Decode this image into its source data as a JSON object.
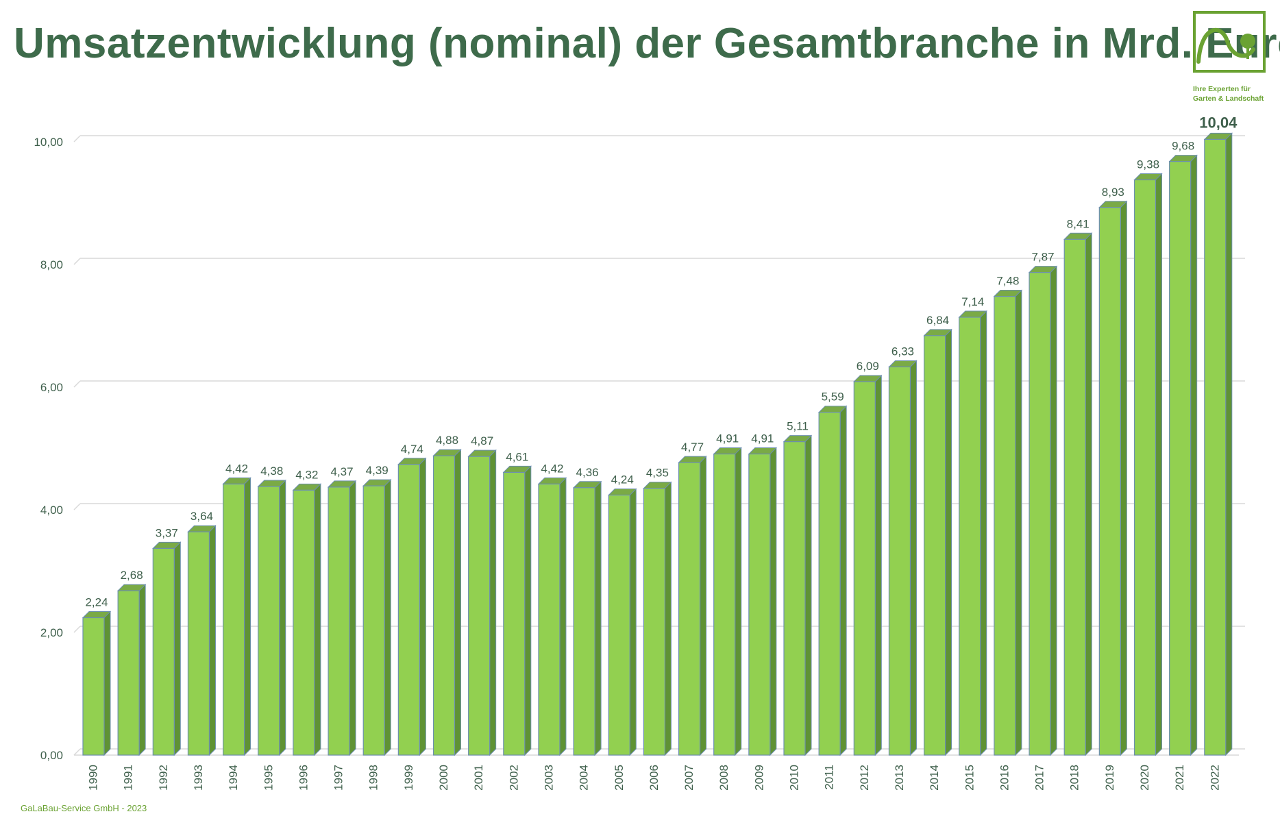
{
  "title": "Umsatzentwicklung (nominal) der Gesamtbranche in Mrd. Euro",
  "logo": {
    "line1": "Ihre Experten für",
    "line2": "Garten & Landschaft"
  },
  "footer": "GaLaBau-Service GmbH  -  2023",
  "colors": {
    "title": "#3e6b4b",
    "bar_front": "#92d050",
    "bar_side": "#5f9234",
    "bar_top": "#7aaa46",
    "bar_edge": "#6d8fb0",
    "label": "#3e5f4b",
    "logo_green": "#6aa232"
  },
  "chart_data": {
    "type": "bar",
    "categories": [
      "1990",
      "1991",
      "1992",
      "1993",
      "1994",
      "1995",
      "1996",
      "1997",
      "1998",
      "1999",
      "2000",
      "2001",
      "2002",
      "2003",
      "2004",
      "2005",
      "2006",
      "2007",
      "2008",
      "2009",
      "2010",
      "2011",
      "2012",
      "2013",
      "2014",
      "2015",
      "2016",
      "2017",
      "2018",
      "2019",
      "2020",
      "2021",
      "2022"
    ],
    "values": [
      2.24,
      2.68,
      3.37,
      3.64,
      4.42,
      4.38,
      4.32,
      4.37,
      4.39,
      4.74,
      4.88,
      4.87,
      4.61,
      4.42,
      4.36,
      4.24,
      4.35,
      4.77,
      4.91,
      4.91,
      5.11,
      5.59,
      6.09,
      6.33,
      6.84,
      7.14,
      7.48,
      7.87,
      8.41,
      8.93,
      9.38,
      9.68,
      10.04
    ],
    "value_labels": [
      "2,24",
      "2,68",
      "3,37",
      "3,64",
      "4,42",
      "4,38",
      "4,32",
      "4,37",
      "4,39",
      "4,74",
      "4,88",
      "4,87",
      "4,61",
      "4,42",
      "4,36",
      "4,24",
      "4,35",
      "4,77",
      "4,91",
      "4,91",
      "5,11",
      "5,59",
      "6,09",
      "6,33",
      "6,84",
      "7,14",
      "7,48",
      "7,87",
      "8,41",
      "8,93",
      "9,38",
      "9,68",
      "10,04"
    ],
    "yticks": [
      0,
      2,
      4,
      6,
      8,
      10
    ],
    "ytick_labels": [
      "0,00",
      "2,00",
      "4,00",
      "6,00",
      "8,00",
      "10,00"
    ],
    "ylim": [
      0,
      10
    ],
    "grid": true,
    "style": "3d-bar",
    "highlight_last": true
  }
}
